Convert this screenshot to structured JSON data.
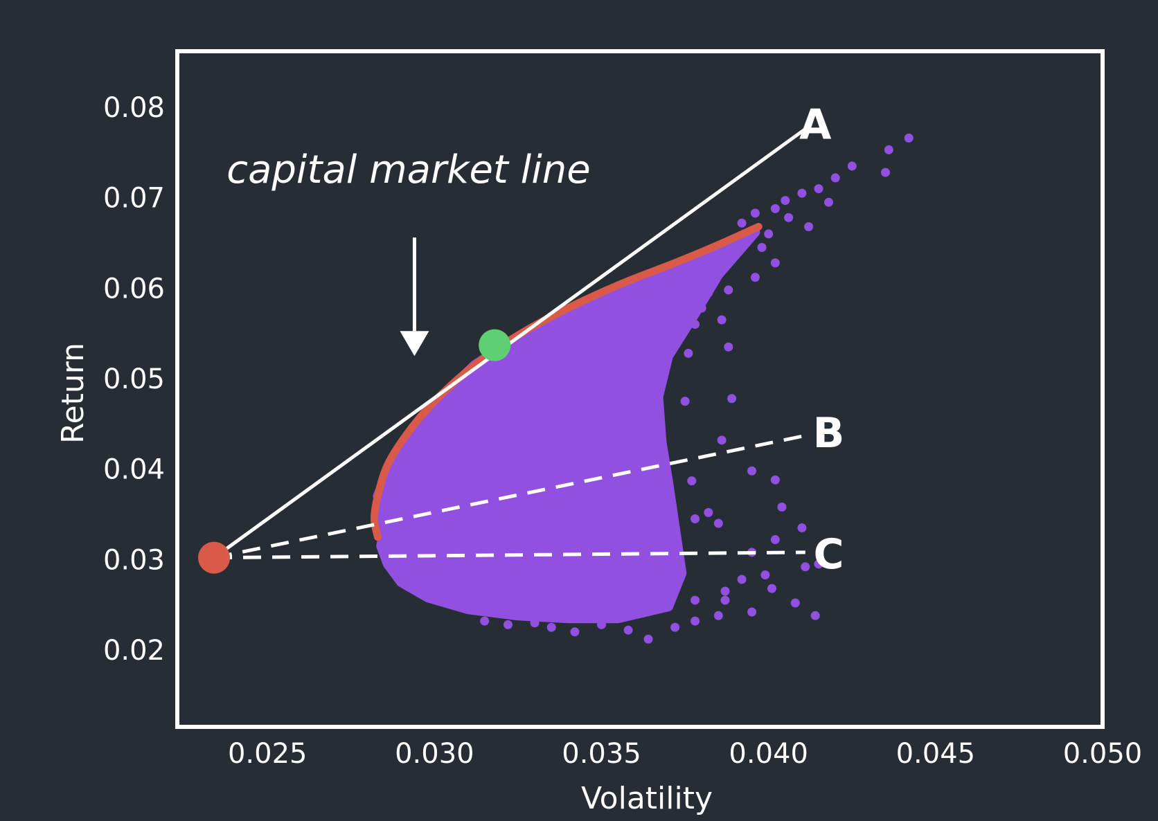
{
  "chart_data": {
    "type": "scatter",
    "xlabel": "Volatility",
    "ylabel": "Return",
    "xlim": [
      0.0223,
      0.05
    ],
    "ylim": [
      0.0115,
      0.0862
    ],
    "grid": false,
    "x_ticks": [
      "0.025",
      "0.030",
      "0.035",
      "0.040",
      "0.045",
      "0.050"
    ],
    "y_ticks": [
      "0.08",
      "0.07",
      "0.06",
      "0.05",
      "0.04",
      "0.03",
      "0.02"
    ],
    "colors": {
      "background": "#262d35",
      "frame": "#ffffff",
      "portfolios": "#9150e0",
      "efficient_frontier": "#d95a48",
      "risk_free": "#d95a48",
      "tangency": "#5ecf73",
      "lines": "#ffffff"
    },
    "series": [
      {
        "kind": "efficient_frontier",
        "points": [
          [
            0.0283,
            0.0325
          ],
          [
            0.0282,
            0.0345
          ],
          [
            0.0283,
            0.037
          ],
          [
            0.0286,
            0.0405
          ],
          [
            0.0292,
            0.044
          ],
          [
            0.03,
            0.0475
          ],
          [
            0.0312,
            0.0515
          ],
          [
            0.0325,
            0.0548
          ],
          [
            0.034,
            0.0578
          ],
          [
            0.0356,
            0.0605
          ],
          [
            0.0372,
            0.0628
          ],
          [
            0.0385,
            0.0648
          ],
          [
            0.0397,
            0.0668
          ]
        ]
      },
      {
        "kind": "portfolios",
        "cloud_outline": [
          [
            0.0285,
            0.0335
          ],
          [
            0.0283,
            0.037
          ],
          [
            0.0288,
            0.0415
          ],
          [
            0.0298,
            0.0465
          ],
          [
            0.0312,
            0.0515
          ],
          [
            0.0328,
            0.0553
          ],
          [
            0.0344,
            0.0583
          ],
          [
            0.036,
            0.0607
          ],
          [
            0.0376,
            0.063
          ],
          [
            0.039,
            0.065
          ],
          [
            0.0396,
            0.0662
          ],
          [
            0.0385,
            0.0615
          ],
          [
            0.0378,
            0.0572
          ],
          [
            0.037,
            0.0525
          ],
          [
            0.0367,
            0.048
          ],
          [
            0.0368,
            0.043
          ],
          [
            0.037,
            0.0385
          ],
          [
            0.0372,
            0.0335
          ],
          [
            0.0374,
            0.0285
          ],
          [
            0.037,
            0.0248
          ],
          [
            0.0355,
            0.0235
          ],
          [
            0.034,
            0.0235
          ],
          [
            0.0325,
            0.0238
          ],
          [
            0.031,
            0.0245
          ],
          [
            0.0298,
            0.0258
          ],
          [
            0.029,
            0.0275
          ],
          [
            0.0286,
            0.0295
          ],
          [
            0.0284,
            0.0315
          ]
        ],
        "outliers": [
          [
            0.0442,
            0.0766
          ],
          [
            0.0436,
            0.0753
          ],
          [
            0.0435,
            0.0728
          ],
          [
            0.0425,
            0.0735
          ],
          [
            0.042,
            0.0722
          ],
          [
            0.0415,
            0.071
          ],
          [
            0.041,
            0.0705
          ],
          [
            0.0405,
            0.0697
          ],
          [
            0.0418,
            0.0695
          ],
          [
            0.0402,
            0.0688
          ],
          [
            0.0396,
            0.0683
          ],
          [
            0.0392,
            0.0672
          ],
          [
            0.0406,
            0.0678
          ],
          [
            0.0412,
            0.0668
          ],
          [
            0.04,
            0.066
          ],
          [
            0.0398,
            0.0645
          ],
          [
            0.0402,
            0.0628
          ],
          [
            0.0396,
            0.0612
          ],
          [
            0.0388,
            0.0598
          ],
          [
            0.0382,
            0.0595
          ],
          [
            0.038,
            0.0578
          ],
          [
            0.0386,
            0.0565
          ],
          [
            0.0378,
            0.056
          ],
          [
            0.0372,
            0.0548
          ],
          [
            0.0388,
            0.0535
          ],
          [
            0.0376,
            0.0528
          ],
          [
            0.0389,
            0.0478
          ],
          [
            0.0375,
            0.0475
          ],
          [
            0.0386,
            0.0432
          ],
          [
            0.0395,
            0.0398
          ],
          [
            0.0402,
            0.0388
          ],
          [
            0.0377,
            0.0387
          ],
          [
            0.0382,
            0.0352
          ],
          [
            0.0385,
            0.034
          ],
          [
            0.0378,
            0.0345
          ],
          [
            0.0404,
            0.0358
          ],
          [
            0.041,
            0.0335
          ],
          [
            0.0402,
            0.0322
          ],
          [
            0.0395,
            0.0308
          ],
          [
            0.0415,
            0.0295
          ],
          [
            0.0411,
            0.0292
          ],
          [
            0.0399,
            0.0283
          ],
          [
            0.0392,
            0.0278
          ],
          [
            0.0387,
            0.0265
          ],
          [
            0.0401,
            0.0268
          ],
          [
            0.0387,
            0.0255
          ],
          [
            0.0378,
            0.0255
          ],
          [
            0.0395,
            0.0242
          ],
          [
            0.0385,
            0.0238
          ],
          [
            0.0378,
            0.0232
          ],
          [
            0.0372,
            0.0225
          ],
          [
            0.0364,
            0.0212
          ],
          [
            0.0358,
            0.0222
          ],
          [
            0.035,
            0.0228
          ],
          [
            0.0342,
            0.022
          ],
          [
            0.0335,
            0.0225
          ],
          [
            0.033,
            0.023
          ],
          [
            0.0322,
            0.0228
          ],
          [
            0.0315,
            0.0232
          ],
          [
            0.0408,
            0.0252
          ],
          [
            0.0414,
            0.0238
          ]
        ]
      },
      {
        "kind": "risk_free_asset",
        "points": [
          [
            0.0234,
            0.0302
          ]
        ]
      },
      {
        "kind": "tangency_portfolio",
        "points": [
          [
            0.0318,
            0.0537
          ]
        ]
      }
    ],
    "lines": [
      {
        "label": "A",
        "style": "solid",
        "from": [
          0.0234,
          0.0302
        ],
        "to": [
          0.0411,
          0.0776
        ],
        "label_at": [
          0.0414,
          0.0782
        ]
      },
      {
        "label": "B",
        "style": "dashed",
        "from": [
          0.0234,
          0.0302
        ],
        "to": [
          0.0411,
          0.0437
        ],
        "label_at": [
          0.0418,
          0.0441
        ]
      },
      {
        "label": "C",
        "style": "dashed",
        "from": [
          0.0234,
          0.0302
        ],
        "to": [
          0.0411,
          0.0308
        ],
        "label_at": [
          0.0418,
          0.0307
        ]
      }
    ],
    "annotation": {
      "text": "capital market line",
      "arrow_from": [
        0.0294,
        0.0656
      ],
      "arrow_to": [
        0.0294,
        0.0525
      ]
    }
  }
}
